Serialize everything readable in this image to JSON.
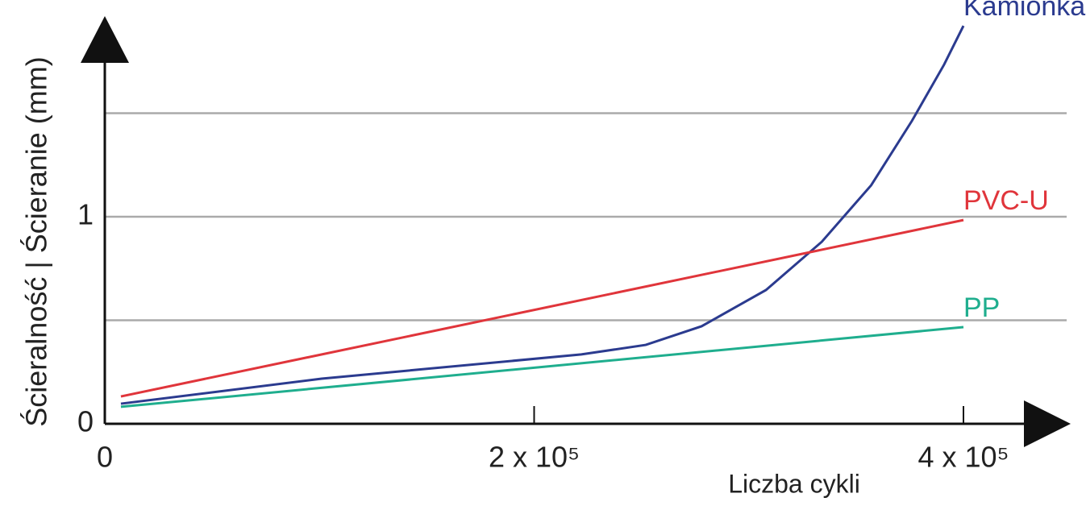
{
  "chart_data": {
    "type": "line",
    "y_label": "Ścieralność | Ścieranie (mm)",
    "x_label": "Liczba cykli",
    "xlim": [
      0,
      400000
    ],
    "ylim": [
      0,
      2
    ],
    "xticks": [
      0,
      {
        "value": 200000,
        "label": "2 x 10⁵"
      },
      {
        "value": 400000,
        "label": "4 x 10⁵"
      }
    ],
    "yticks": [
      0,
      1
    ],
    "ygrid": [
      0.5,
      1,
      1.5
    ],
    "series": [
      {
        "name": "Kamionka",
        "color": "#2b3b8f",
        "x": [
          7500,
          101000,
          222000,
          252000,
          278000,
          308000,
          334000,
          357000,
          376000,
          391000,
          400000
        ],
        "values": [
          0.097,
          0.218,
          0.335,
          0.381,
          0.471,
          0.646,
          0.879,
          1.152,
          1.463,
          1.735,
          1.922
        ]
      },
      {
        "name": "PVC-U",
        "color": "#e0353b",
        "x": [
          7500,
          400000
        ],
        "values": [
          0.132,
          0.984
        ]
      },
      {
        "name": "PP",
        "color": "#1fae8e",
        "x": [
          7500,
          400000
        ],
        "values": [
          0.082,
          0.467
        ]
      }
    ]
  }
}
